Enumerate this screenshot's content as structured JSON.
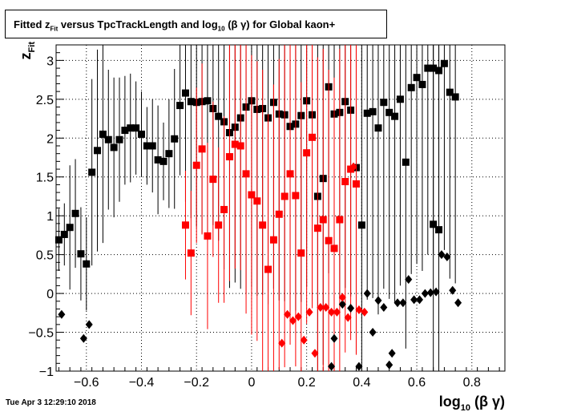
{
  "footer_timestamp": "Tue Apr  3 12:29:10 2018",
  "chart_data": {
    "type": "scatter",
    "title": {
      "prefix": "Fitted  z",
      "prefix_sub": "Fit",
      "middle": "  versus TpcTrackLength and log",
      "middle_sub": "10",
      "suffix": " (β γ) for Global kaon+"
    },
    "xlabel": {
      "main": "log",
      "sub": "10",
      "rest": " (β γ)"
    },
    "ylabel": {
      "main": "z",
      "sub": "Fit"
    },
    "xlim": [
      -0.71,
      0.92
    ],
    "ylim": [
      -1.0,
      3.2
    ],
    "xticks": [
      -0.6,
      -0.4,
      -0.2,
      0,
      0.2,
      0.4,
      0.6,
      0.8
    ],
    "xtick_labels": [
      "−0.6",
      "−0.4",
      "−0.2",
      "0",
      "0.2",
      "0.4",
      "0.6",
      "0.8"
    ],
    "yticks": [
      -1,
      -0.5,
      0,
      0.5,
      1,
      1.5,
      2,
      2.5,
      3
    ],
    "ytick_labels": [
      "−1",
      "−0.5",
      "0",
      "0.5",
      "1",
      "1.5",
      "2",
      "2.5",
      "3"
    ],
    "grid": true,
    "series": [
      {
        "color": "#000000",
        "marker": "square",
        "points": [
          [
            -0.7,
            0.69,
            0.4
          ],
          [
            -0.68,
            0.76,
            0.4
          ],
          [
            -0.66,
            0.85,
            0.8
          ],
          [
            -0.64,
            1.03,
            0.7
          ],
          [
            -0.62,
            0.51,
            0.6
          ],
          [
            -0.6,
            0.38,
            0.6
          ],
          [
            -0.58,
            1.56,
            1.2
          ],
          [
            -0.56,
            1.84,
            1.3
          ],
          [
            -0.54,
            2.05,
            1.4
          ],
          [
            -0.52,
            1.98,
            0.9
          ],
          [
            -0.5,
            1.88,
            0.9
          ],
          [
            -0.48,
            1.98,
            0.8
          ],
          [
            -0.46,
            2.1,
            0.7
          ],
          [
            -0.44,
            2.13,
            0.7
          ],
          [
            -0.42,
            2.13,
            0.6
          ],
          [
            -0.4,
            2.05,
            0.55
          ],
          [
            -0.38,
            1.9,
            0.5
          ],
          [
            -0.36,
            1.9,
            0.6
          ],
          [
            -0.34,
            1.72,
            0.7
          ],
          [
            -0.32,
            1.7,
            0.5
          ],
          [
            -0.3,
            1.8,
            0.7
          ],
          [
            -0.28,
            1.99,
            0.9
          ],
          [
            -0.26,
            2.42,
            0.9
          ],
          [
            -0.24,
            2.58,
            1.4
          ],
          [
            -0.22,
            2.47,
            1.5
          ],
          [
            -0.2,
            2.46,
            1.6
          ],
          [
            -0.18,
            2.47,
            1.7
          ],
          [
            -0.16,
            2.48,
            1.8
          ],
          [
            -0.14,
            2.38,
            1.5
          ],
          [
            -0.12,
            2.28,
            1.6
          ],
          [
            -0.1,
            2.21,
            1.9
          ],
          [
            -0.08,
            2.07,
            2.0
          ],
          [
            -0.06,
            2.14,
            2.0
          ],
          [
            -0.04,
            2.26,
            2.2
          ],
          [
            -0.02,
            2.4,
            2.4
          ],
          [
            0.0,
            2.48,
            2.4
          ],
          [
            0.02,
            2.37,
            2.4
          ],
          [
            0.04,
            2.38,
            2.4
          ],
          [
            0.06,
            2.26,
            2.4
          ],
          [
            0.08,
            2.46,
            2.4
          ],
          [
            0.1,
            2.31,
            2.4
          ],
          [
            0.12,
            2.3,
            2.4
          ],
          [
            0.14,
            2.15,
            2.4
          ],
          [
            0.16,
            2.18,
            2.4
          ],
          [
            0.18,
            2.29,
            2.4
          ],
          [
            0.2,
            2.48,
            2.4
          ],
          [
            0.22,
            2.3,
            2.4
          ],
          [
            0.24,
            1.25,
            2.4
          ],
          [
            0.26,
            1.48,
            2.4
          ],
          [
            0.28,
            2.66,
            2.4
          ],
          [
            0.3,
            2.31,
            2.4
          ],
          [
            0.32,
            2.33,
            2.4
          ],
          [
            0.34,
            2.47,
            2.4
          ],
          [
            0.36,
            2.36,
            2.4
          ],
          [
            0.38,
            1.62,
            2.4
          ],
          [
            0.4,
            0.88,
            2.4
          ],
          [
            0.42,
            2.32,
            2.4
          ],
          [
            0.44,
            2.34,
            2.4
          ],
          [
            0.46,
            2.13,
            2.4
          ],
          [
            0.48,
            2.46,
            2.4
          ],
          [
            0.5,
            2.33,
            2.4
          ],
          [
            0.52,
            2.28,
            2.4
          ],
          [
            0.54,
            2.5,
            2.4
          ],
          [
            0.56,
            1.69,
            2.4
          ],
          [
            0.58,
            2.65,
            2.4
          ],
          [
            0.6,
            2.78,
            2.4
          ],
          [
            0.62,
            2.69,
            2.4
          ],
          [
            0.64,
            2.9,
            2.4
          ],
          [
            0.66,
            2.9,
            2.4
          ],
          [
            0.68,
            2.87,
            2.4
          ],
          [
            0.7,
            2.96,
            2.4
          ],
          [
            0.72,
            2.59,
            2.4
          ],
          [
            0.74,
            2.53,
            2.4
          ],
          [
            0.66,
            0.89,
            2.4
          ],
          [
            0.68,
            0.82,
            2.4
          ]
        ]
      },
      {
        "color": "#ff0000",
        "marker": "square",
        "points": [
          [
            -0.24,
            0.88,
            0.7
          ],
          [
            -0.22,
            0.52,
            0.8
          ],
          [
            -0.2,
            1.65,
            1.0
          ],
          [
            -0.18,
            1.86,
            1.1
          ],
          [
            -0.16,
            0.74,
            1.2
          ],
          [
            -0.14,
            1.47,
            1.0
          ],
          [
            -0.12,
            0.88,
            1.0
          ],
          [
            -0.1,
            1.08,
            1.2
          ],
          [
            -0.08,
            1.76,
            1.6
          ],
          [
            -0.06,
            1.92,
            1.6
          ],
          [
            -0.04,
            1.9,
            1.6
          ],
          [
            -0.02,
            1.54,
            1.8
          ],
          [
            0.0,
            1.27,
            1.8
          ],
          [
            0.02,
            1.19,
            1.8
          ],
          [
            0.04,
            0.88,
            2.0
          ],
          [
            0.06,
            0.31,
            2.0
          ],
          [
            0.08,
            0.69,
            2.0
          ],
          [
            0.1,
            1.02,
            2.0
          ],
          [
            0.12,
            1.25,
            2.2
          ],
          [
            0.14,
            1.54,
            2.2
          ],
          [
            0.16,
            1.26,
            2.2
          ],
          [
            0.18,
            0.52,
            2.2
          ],
          [
            0.2,
            1.81,
            2.2
          ],
          [
            0.22,
            2.01,
            2.2
          ],
          [
            0.24,
            0.84,
            2.2
          ],
          [
            0.26,
            0.95,
            2.2
          ],
          [
            0.28,
            0.68,
            2.2
          ],
          [
            0.3,
            0.58,
            2.2
          ],
          [
            0.32,
            0.95,
            2.2
          ],
          [
            0.34,
            1.44,
            2.2
          ],
          [
            0.36,
            1.6,
            2.2
          ],
          [
            0.38,
            1.41,
            2.2
          ]
        ]
      },
      {
        "color": "#000000",
        "marker": "diamond",
        "points": [
          [
            -0.69,
            -0.27
          ],
          [
            -0.61,
            -0.58
          ],
          [
            -0.59,
            -0.4
          ],
          [
            0.29,
            -0.94
          ],
          [
            0.3,
            -0.58
          ],
          [
            0.33,
            -0.14
          ],
          [
            0.36,
            -0.19
          ],
          [
            0.39,
            -0.94
          ],
          [
            0.42,
            0.0
          ],
          [
            0.44,
            -0.5
          ],
          [
            0.46,
            -0.09
          ],
          [
            0.48,
            -0.18
          ],
          [
            0.5,
            -0.92
          ],
          [
            0.51,
            -0.77
          ],
          [
            0.53,
            -0.12
          ],
          [
            0.55,
            -0.12
          ],
          [
            0.57,
            0.18
          ],
          [
            0.59,
            -0.08
          ],
          [
            0.61,
            -0.08
          ],
          [
            0.63,
            0.0
          ],
          [
            0.65,
            0.01
          ],
          [
            0.67,
            0.02
          ],
          [
            0.69,
            0.5
          ],
          [
            0.71,
            0.47
          ],
          [
            0.73,
            0.04
          ],
          [
            0.75,
            -0.12
          ]
        ]
      },
      {
        "color": "#ff0000",
        "marker": "diamond",
        "points": [
          [
            0.11,
            -0.64
          ],
          [
            0.13,
            -0.27
          ],
          [
            0.15,
            -0.35
          ],
          [
            0.17,
            -0.3
          ],
          [
            0.19,
            -0.6
          ],
          [
            0.21,
            -0.24
          ],
          [
            0.23,
            -0.77
          ],
          [
            0.25,
            -0.18
          ],
          [
            0.27,
            -0.18
          ],
          [
            0.29,
            -0.24
          ],
          [
            0.31,
            -0.24
          ],
          [
            0.33,
            -0.05
          ],
          [
            0.35,
            -0.31
          ],
          [
            0.37,
            1.63
          ],
          [
            0.39,
            -0.21
          ],
          [
            0.41,
            -0.24
          ]
        ]
      }
    ]
  }
}
